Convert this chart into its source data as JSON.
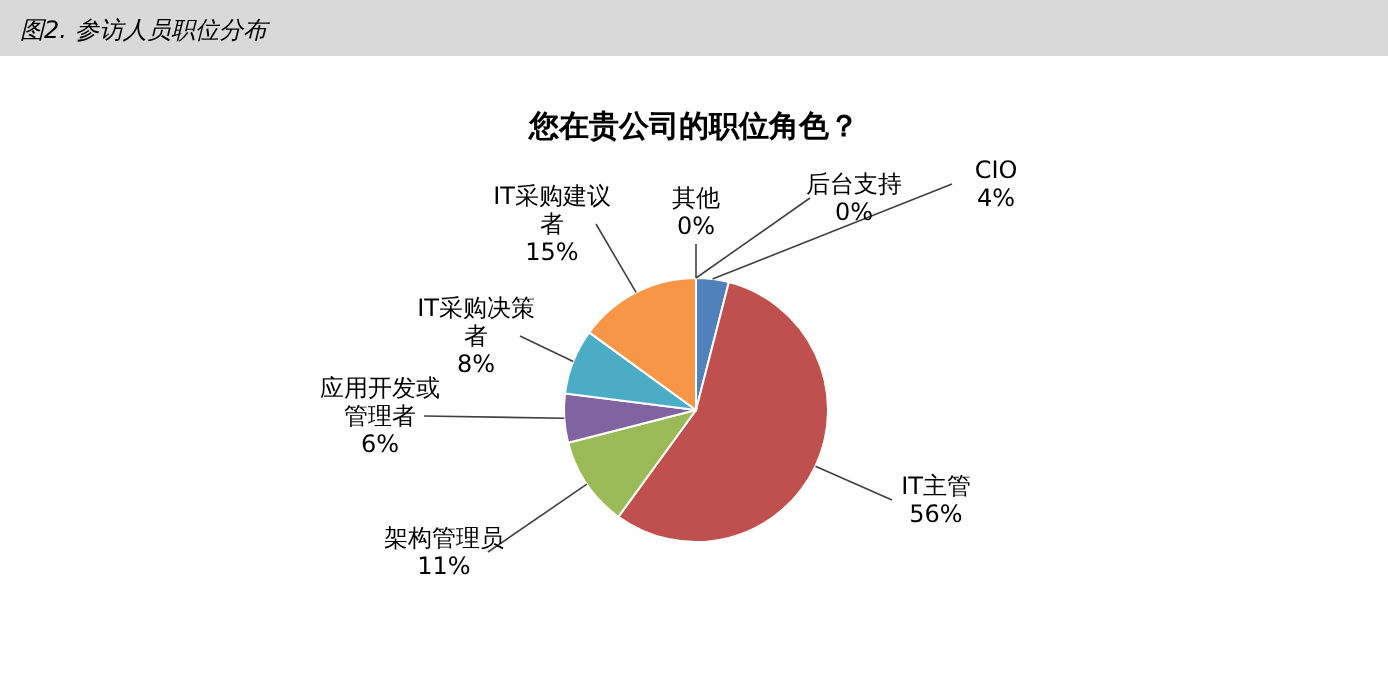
{
  "chart_data": {
    "type": "pie",
    "title": "图2. 参访人员职位分布",
    "subtitle": "您在贵公司的职位角色？",
    "categories": [
      "CIO",
      "IT主管",
      "架构管理员",
      "应用开发或管理者",
      "IT采购决策者",
      "IT采购建议者",
      "其他",
      "后台支持"
    ],
    "values": [
      4,
      56,
      11,
      6,
      8,
      15,
      0,
      0
    ],
    "colors": [
      "#4f81bd",
      "#c0504d",
      "#9bbb59",
      "#8064a2",
      "#4bacc6",
      "#f79646",
      "#7f7f7f",
      "#a5a5a5"
    ],
    "value_labels": [
      "4%",
      "56%",
      "11%",
      "6%",
      "8%",
      "15%",
      "0%",
      "0%"
    ]
  }
}
